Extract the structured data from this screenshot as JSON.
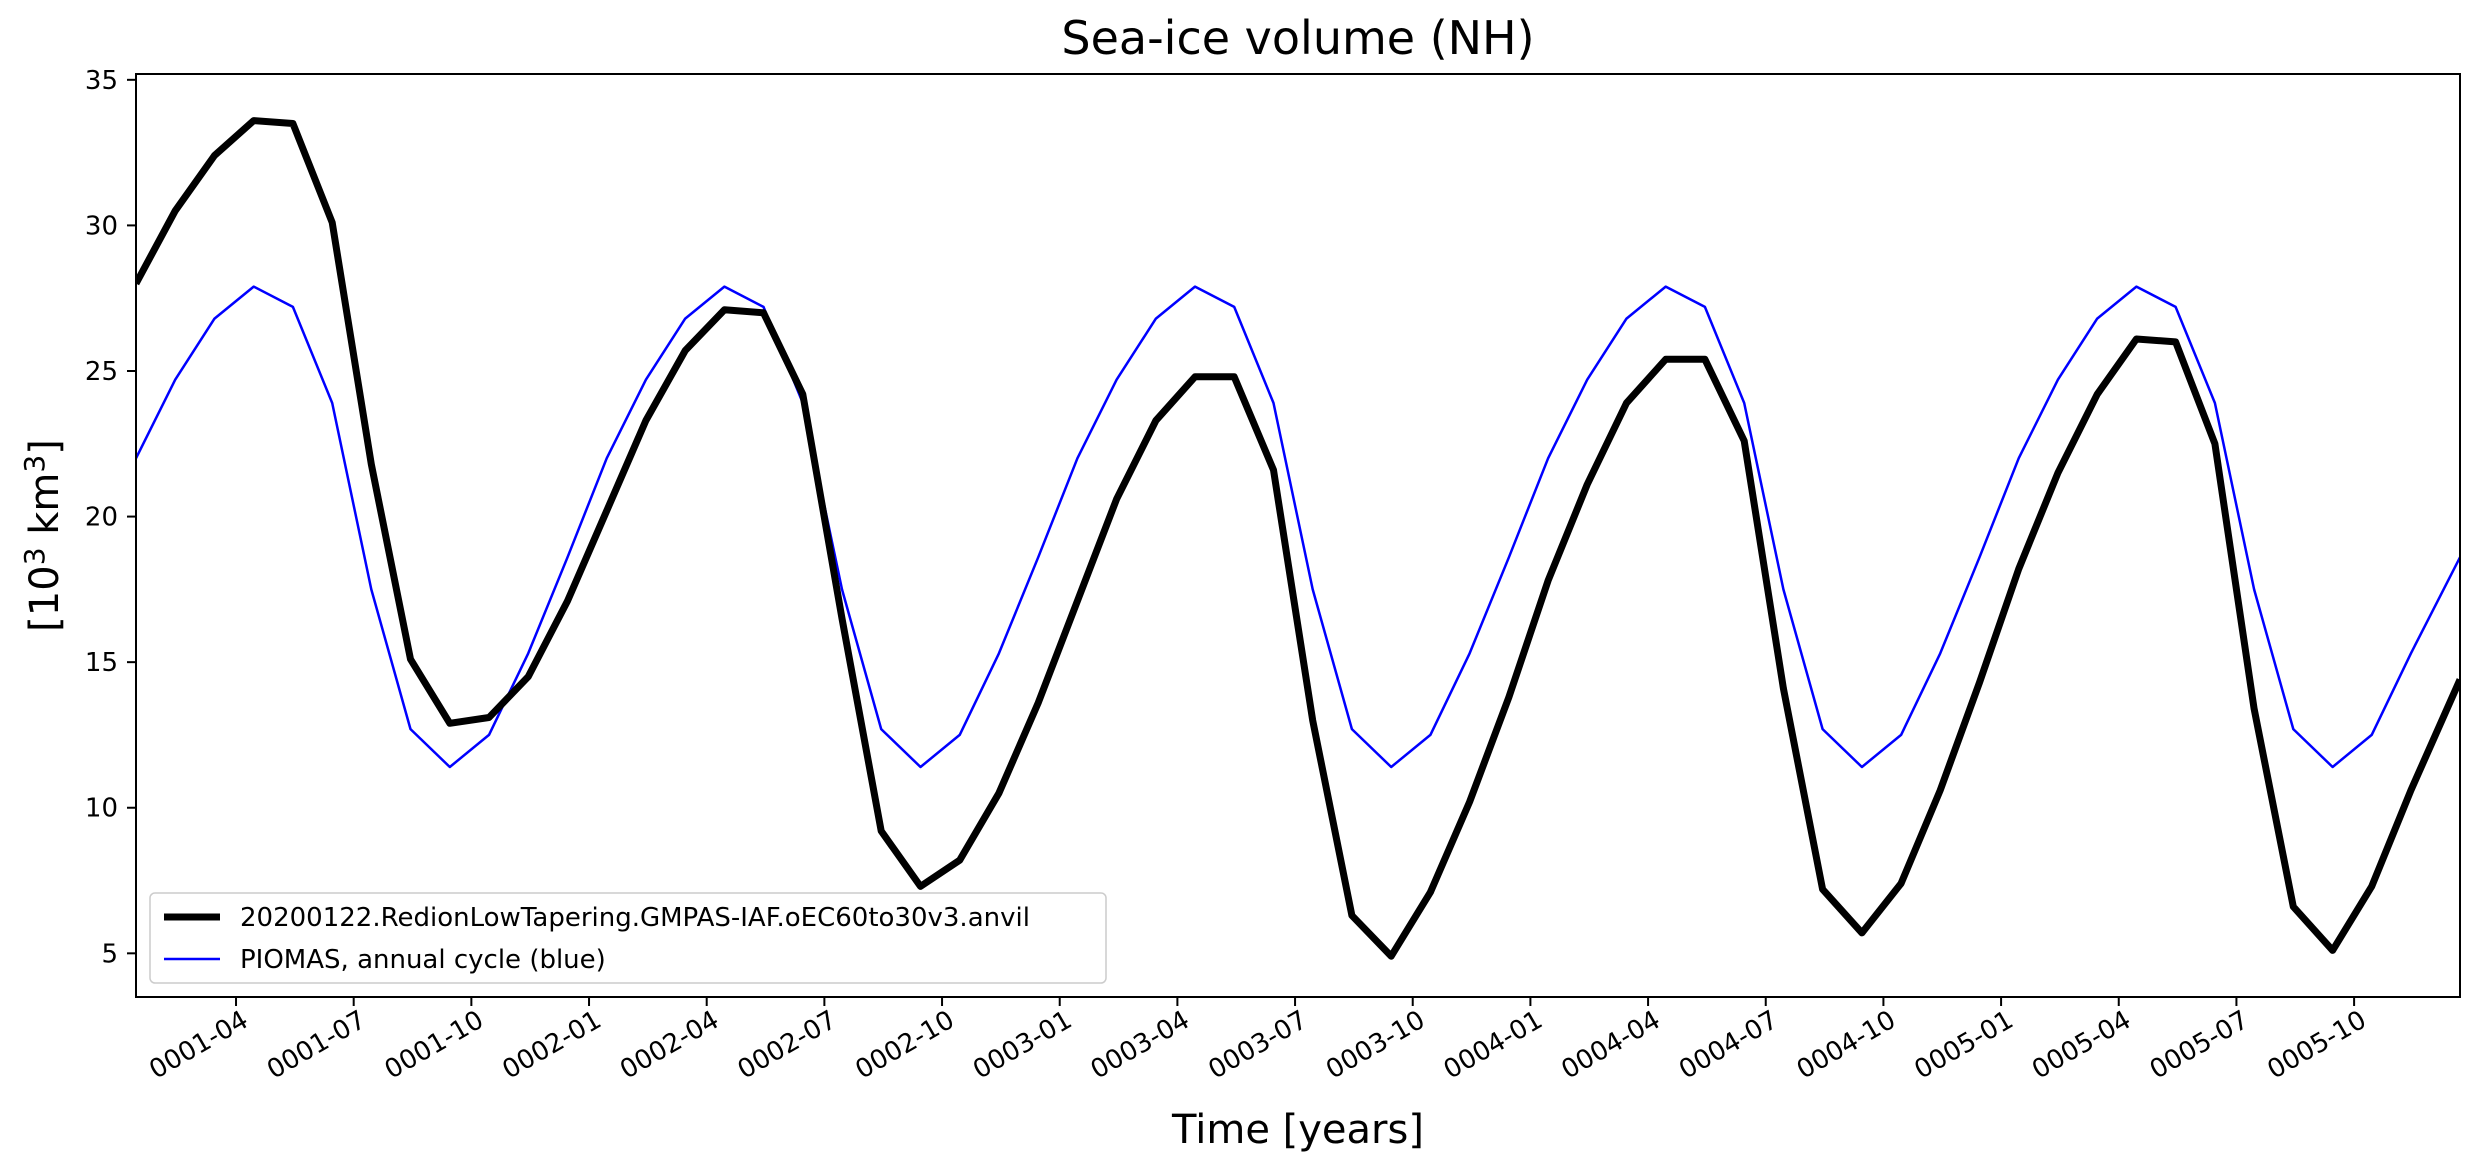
{
  "chart_data": {
    "type": "line",
    "title": "Sea-ice volume (NH)",
    "xlabel": "Time [years]",
    "ylabel_base": "[10",
    "ylabel_exp1": "3",
    "ylabel_mid": " km",
    "ylabel_exp2": "3",
    "ylabel_end": "]",
    "ylim": [
      3.5,
      35.2
    ],
    "xlim": [
      0.8,
      20.55
    ],
    "yticks": [
      5,
      10,
      15,
      20,
      25,
      30,
      35
    ],
    "ytick_labels": [
      "5",
      "10",
      "15",
      "20",
      "25",
      "30",
      "35"
    ],
    "xticks": [
      1.65,
      2.65,
      3.65,
      4.65,
      5.65,
      6.65,
      7.65,
      8.65,
      9.65,
      10.65,
      11.65,
      12.65,
      13.65,
      14.65,
      15.65,
      16.65,
      17.65,
      18.65,
      19.65
    ],
    "xtick_labels": [
      "0001-04",
      "0001-07",
      "0001-10",
      "0002-01",
      "0002-04",
      "0002-07",
      "0002-10",
      "0003-01",
      "0003-04",
      "0003-07",
      "0003-10",
      "0004-01",
      "0004-04",
      "0004-07",
      "0004-10",
      "0005-01",
      "0005-04",
      "0005-07",
      "0005-10"
    ],
    "x": [
      0.8,
      1.133,
      1.467,
      1.8,
      2.133,
      2.467,
      2.8,
      3.133,
      3.467,
      3.8,
      4.133,
      4.467,
      4.8,
      5.133,
      5.467,
      5.8,
      6.133,
      6.467,
      6.8,
      7.133,
      7.467,
      7.8,
      8.133,
      8.467,
      8.8,
      9.133,
      9.467,
      9.8,
      10.133,
      10.467,
      10.8,
      11.133,
      11.467,
      11.8,
      12.133,
      12.467,
      12.8,
      13.133,
      13.467,
      13.8,
      14.133,
      14.467,
      14.8,
      15.133,
      15.467,
      15.8,
      16.133,
      16.467,
      16.8,
      17.133,
      17.467,
      17.8,
      18.133,
      18.467,
      18.8,
      19.133,
      19.467,
      19.8,
      20.133,
      20.55
    ],
    "series": [
      {
        "name": "20200122.RedionLowTapering.GMPAS-IAF.oEC60to30v3.anvil",
        "color": "#000000",
        "values": [
          28.0,
          30.5,
          32.4,
          33.6,
          33.5,
          30.1,
          21.8,
          15.1,
          12.9,
          13.1,
          14.5,
          17.1,
          20.2,
          23.3,
          25.7,
          27.1,
          27.0,
          24.2,
          16.5,
          9.2,
          7.3,
          8.2,
          10.5,
          13.6,
          17.1,
          20.6,
          23.3,
          24.8,
          24.8,
          21.6,
          13.0,
          6.3,
          4.9,
          7.1,
          10.2,
          13.8,
          17.8,
          21.1,
          23.9,
          25.4,
          25.4,
          22.6,
          14.1,
          7.2,
          5.7,
          7.4,
          10.6,
          14.3,
          18.2,
          21.5,
          24.2,
          26.1,
          26.0,
          22.5,
          13.4,
          6.6,
          5.1,
          7.3,
          10.6,
          14.4
        ]
      },
      {
        "name": "PIOMAS, annual cycle (blue)",
        "color": "#0000ff",
        "values": [
          22.0,
          24.7,
          26.8,
          27.9,
          27.2,
          23.9,
          17.5,
          12.7,
          11.4,
          12.5,
          15.3,
          18.6,
          22.0,
          24.7,
          26.8,
          27.9,
          27.2,
          23.9,
          17.5,
          12.7,
          11.4,
          12.5,
          15.3,
          18.6,
          22.0,
          24.7,
          26.8,
          27.9,
          27.2,
          23.9,
          17.5,
          12.7,
          11.4,
          12.5,
          15.3,
          18.6,
          22.0,
          24.7,
          26.8,
          27.9,
          27.2,
          23.9,
          17.5,
          12.7,
          11.4,
          12.5,
          15.3,
          18.6,
          22.0,
          24.7,
          26.8,
          27.9,
          27.2,
          23.9,
          17.5,
          12.7,
          11.4,
          12.5,
          15.3,
          18.6
        ]
      }
    ],
    "legend_position": "lower-left"
  }
}
